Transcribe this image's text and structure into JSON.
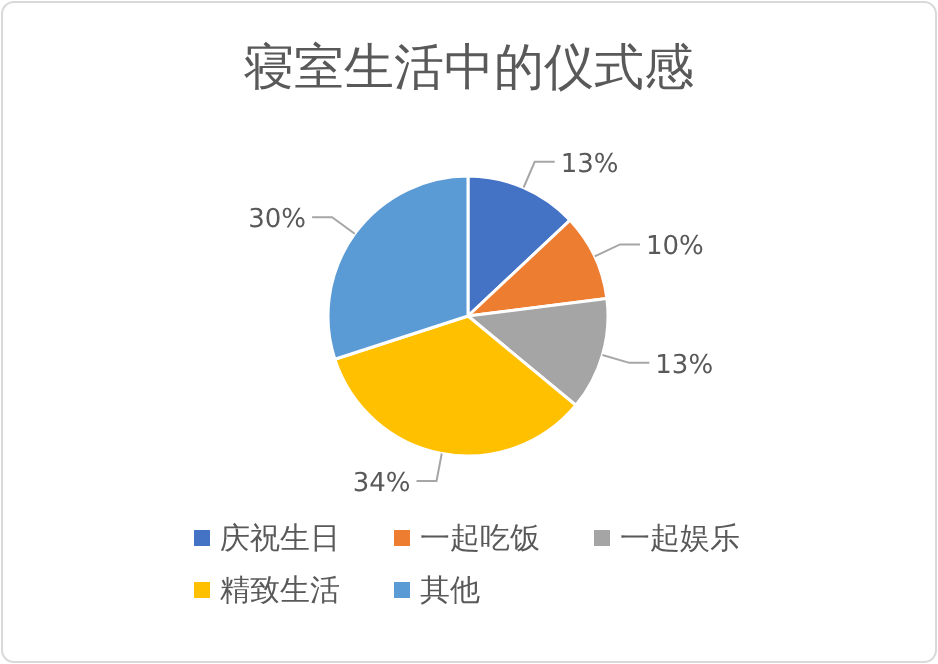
{
  "chart_data": {
    "type": "pie",
    "title": "寝室生活中的仪式感",
    "categories": [
      "庆祝生日",
      "一起吃饭",
      "一起娱乐",
      "精致生活",
      "其他"
    ],
    "values": [
      13,
      10,
      13,
      34,
      30
    ],
    "value_labels": [
      "13%",
      "10%",
      "13%",
      "34%",
      "30%"
    ],
    "colors": [
      "#4472c4",
      "#ed7d31",
      "#a5a5a5",
      "#ffc000",
      "#5b9bd5"
    ],
    "legend": "bottom"
  }
}
